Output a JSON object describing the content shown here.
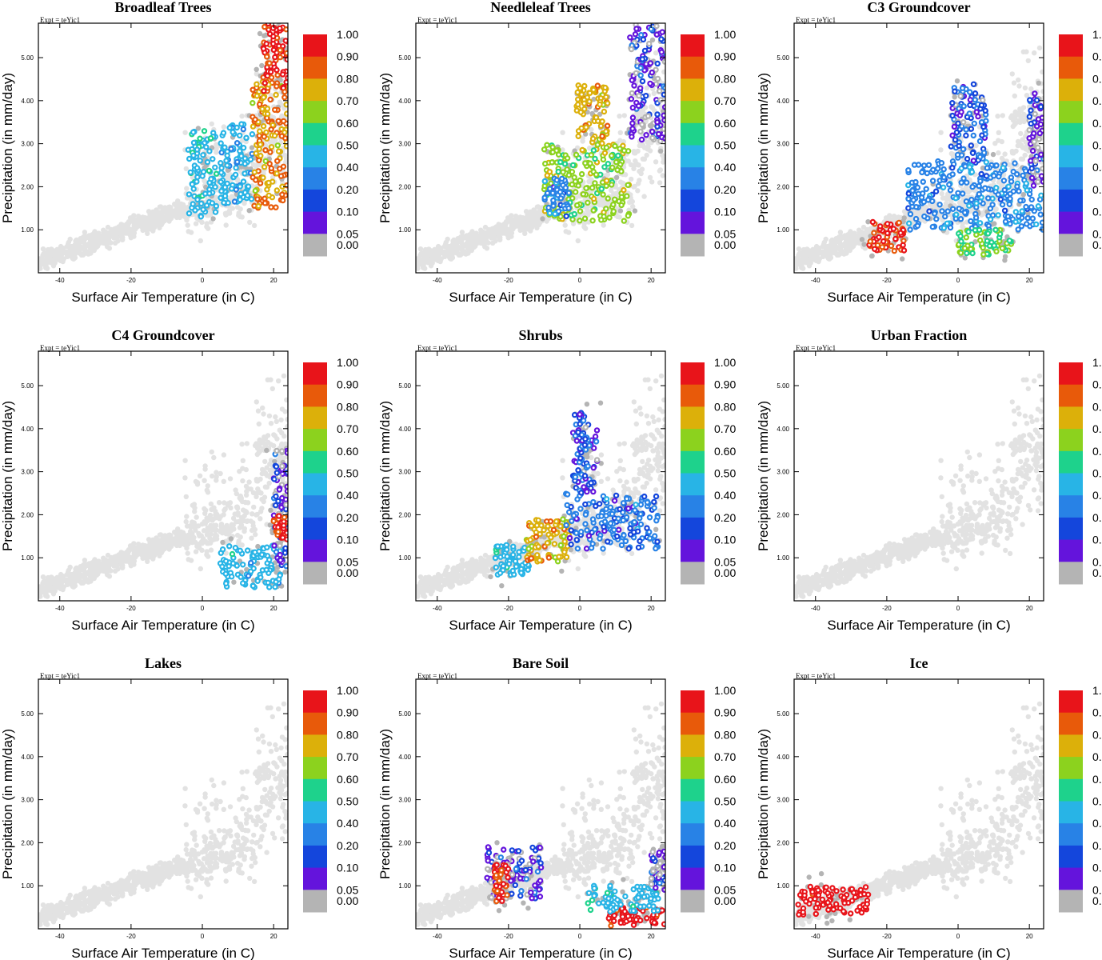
{
  "figure": {
    "expt_label": "Expt = teYic1",
    "xlabel": "Surface Air Temperature (in C)",
    "ylabel": "Precipitation (in mm/day)",
    "xticks": [
      -40,
      -20,
      0,
      20
    ],
    "yticks": [
      "1.00",
      "2.00",
      "3.00",
      "4.00",
      "5.00"
    ],
    "xlim": [
      -46,
      24
    ],
    "ylim": [
      0,
      5.8
    ],
    "colorbar": {
      "labels": [
        "1.00",
        "0.90",
        "0.80",
        "0.70",
        "0.60",
        "0.50",
        "0.40",
        "0.20",
        "0.10",
        "0.05",
        "0.00"
      ],
      "colors": [
        "#e8141a",
        "#e85a0a",
        "#dcb00a",
        "#8cd21e",
        "#1ed28c",
        "#28b4e6",
        "#2882e6",
        "#1446dc",
        "#6414dc",
        "#b4b4b4"
      ]
    }
  },
  "chart_data": [
    {
      "type": "scatter",
      "title": "Broadleaf Trees",
      "xlabel": "Surface Air Temperature (in C)",
      "ylabel": "Precipitation (in mm/day)",
      "xlim": [
        -46,
        24
      ],
      "ylim": [
        0,
        5.8
      ],
      "colored_regions": [
        [
          -4,
          4,
          1.3,
          3.3,
          0.4
        ],
        [
          5,
          14,
          1.6,
          3.5,
          0.3
        ],
        [
          14,
          24,
          1.5,
          4.6,
          0.75
        ],
        [
          17,
          24,
          4.2,
          5.8,
          0.9
        ]
      ]
    },
    {
      "type": "scatter",
      "title": "Needleleaf Trees",
      "xlabel": "Surface Air Temperature (in C)",
      "ylabel": "Precipitation (in mm/day)",
      "xlim": [
        -46,
        24
      ],
      "ylim": [
        0,
        5.8
      ],
      "colored_regions": [
        [
          -10,
          14,
          1.2,
          3.0,
          0.6
        ],
        [
          -1,
          8,
          3.0,
          4.4,
          0.7
        ],
        [
          14,
          24,
          3.0,
          5.8,
          0.05
        ],
        [
          -10,
          -3,
          1.3,
          2.2,
          0.2
        ]
      ]
    },
    {
      "type": "scatter",
      "title": "C3 Groundcover",
      "xlabel": "Surface Air Temperature (in C)",
      "ylabel": "Precipitation (in mm/day)",
      "xlim": [
        -46,
        24
      ],
      "ylim": [
        0,
        5.8
      ],
      "colored_regions": [
        [
          -25,
          -15,
          0.5,
          1.2,
          0.9
        ],
        [
          -14,
          24,
          1.0,
          2.6,
          0.2
        ],
        [
          -2,
          8,
          2.6,
          4.4,
          0.1
        ],
        [
          20,
          24,
          2.0,
          4.2,
          0.05
        ],
        [
          0,
          15,
          0.4,
          1.0,
          0.55
        ]
      ]
    },
    {
      "type": "scatter",
      "title": "C4 Groundcover",
      "xlabel": "Surface Air Temperature (in C)",
      "ylabel": "Precipitation (in mm/day)",
      "xlim": [
        -46,
        24
      ],
      "ylim": [
        0,
        5.8
      ],
      "colored_regions": [
        [
          5,
          22,
          0.3,
          1.3,
          0.35
        ],
        [
          20,
          24,
          0.8,
          3.6,
          0.05
        ],
        [
          20,
          24,
          1.4,
          2.0,
          0.9
        ]
      ]
    },
    {
      "type": "scatter",
      "title": "Shrubs",
      "xlabel": "Surface Air Temperature (in C)",
      "ylabel": "Precipitation (in mm/day)",
      "xlim": [
        -46,
        24
      ],
      "ylim": [
        0,
        5.8
      ],
      "colored_regions": [
        [
          -24,
          -14,
          0.6,
          1.3,
          0.4
        ],
        [
          -15,
          -2,
          0.9,
          1.9,
          0.7
        ],
        [
          -4,
          22,
          1.2,
          2.5,
          0.15
        ],
        [
          -2,
          5,
          2.5,
          4.4,
          0.1
        ]
      ]
    },
    {
      "type": "scatter",
      "title": "Urban Fraction",
      "xlabel": "Surface Air Temperature (in C)",
      "ylabel": "Precipitation (in mm/day)",
      "xlim": [
        -46,
        24
      ],
      "ylim": [
        0,
        5.8
      ],
      "colored_regions": []
    },
    {
      "type": "scatter",
      "title": "Lakes",
      "xlabel": "Surface Air Temperature (in C)",
      "ylabel": "Precipitation (in mm/day)",
      "xlim": [
        -46,
        24
      ],
      "ylim": [
        0,
        5.8
      ],
      "colored_regions": []
    },
    {
      "type": "scatter",
      "title": "Bare Soil",
      "xlabel": "Surface Air Temperature (in C)",
      "ylabel": "Precipitation (in mm/day)",
      "xlim": [
        -46,
        24
      ],
      "ylim": [
        0,
        5.8
      ],
      "colored_regions": [
        [
          -26,
          -10,
          0.7,
          1.9,
          0.05
        ],
        [
          -24,
          -20,
          0.6,
          1.5,
          0.9
        ],
        [
          8,
          24,
          0.05,
          0.5,
          0.95
        ],
        [
          2,
          22,
          0.4,
          1.0,
          0.4
        ],
        [
          20,
          24,
          0.9,
          1.8,
          0.05
        ]
      ]
    },
    {
      "type": "scatter",
      "title": "Ice",
      "xlabel": "Surface Air Temperature (in C)",
      "ylabel": "Precipitation (in mm/day)",
      "xlim": [
        -46,
        24
      ],
      "ylim": [
        0,
        5.8
      ],
      "colored_regions": [
        [
          -45,
          -25,
          0.3,
          1.0,
          1.0
        ]
      ]
    }
  ]
}
